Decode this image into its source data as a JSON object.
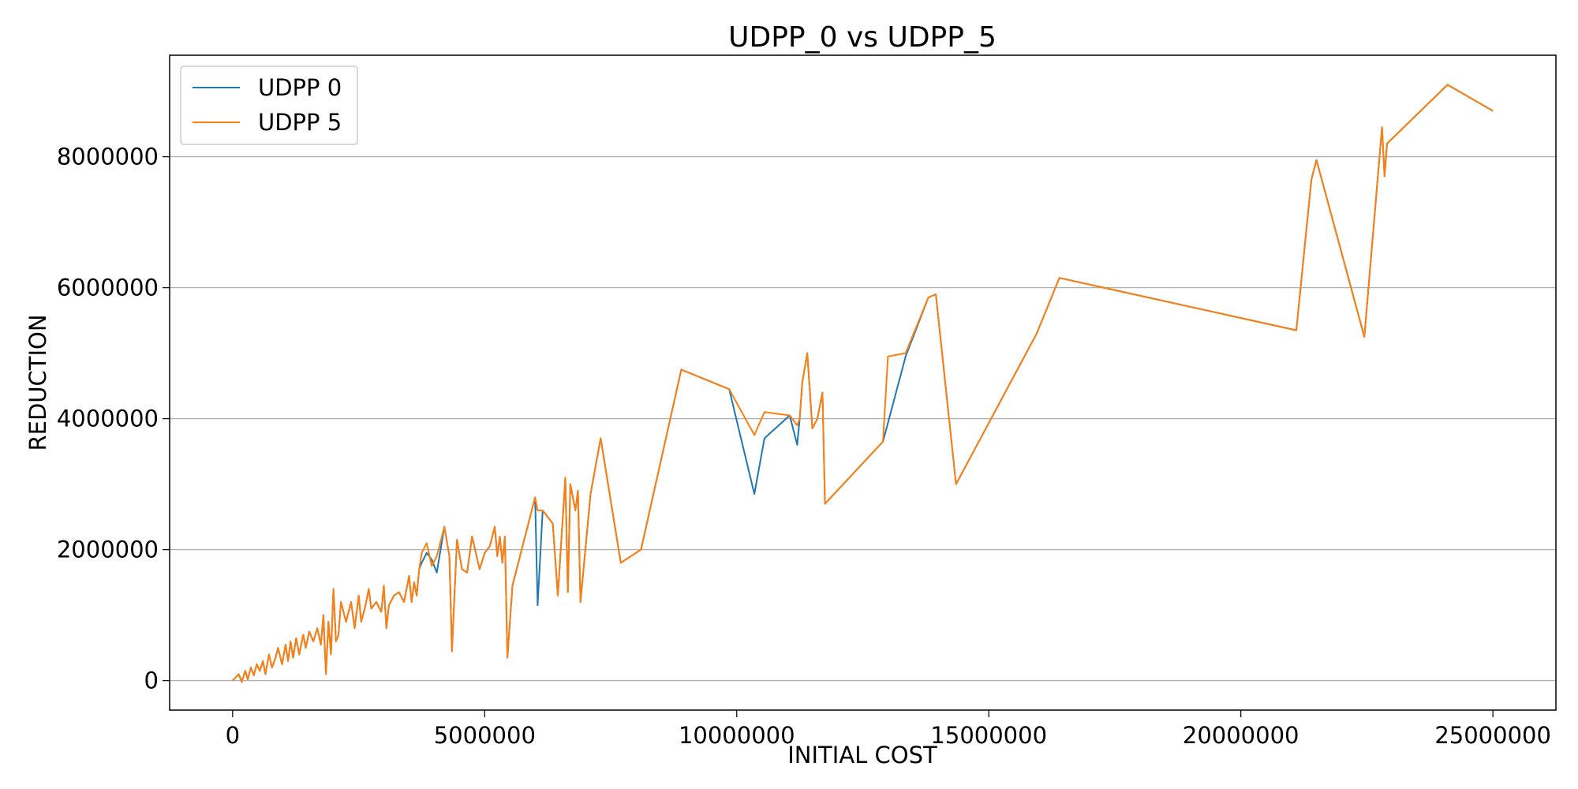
{
  "chart_data": {
    "type": "line",
    "title": "UDPP_0 vs UDPP_5",
    "xlabel": "INITIAL COST",
    "ylabel": "REDUCTION",
    "xlim": [
      -1250000,
      26250000
    ],
    "ylim": [
      -450000,
      9550000
    ],
    "x_ticks": [
      0,
      5000000,
      10000000,
      15000000,
      20000000,
      25000000
    ],
    "x_tick_labels": [
      "0",
      "5000000",
      "10000000",
      "15000000",
      "20000000",
      "25000000"
    ],
    "y_ticks": [
      0,
      2000000,
      4000000,
      6000000,
      8000000
    ],
    "y_tick_labels": [
      "0",
      "2000000",
      "4000000",
      "6000000",
      "8000000"
    ],
    "grid": "horizontal",
    "legend_position": "top-left",
    "series": [
      {
        "name": "UDPP 0",
        "color": "#1f77b4",
        "x": [
          0,
          60000,
          120000,
          180000,
          250000,
          300000,
          360000,
          420000,
          480000,
          540000,
          600000,
          650000,
          720000,
          780000,
          850000,
          900000,
          980000,
          1050000,
          1100000,
          1150000,
          1200000,
          1260000,
          1320000,
          1400000,
          1450000,
          1520000,
          1600000,
          1680000,
          1750000,
          1800000,
          1850000,
          1900000,
          1950000,
          2000000,
          2050000,
          2100000,
          2150000,
          2250000,
          2350000,
          2420000,
          2500000,
          2550000,
          2620000,
          2700000,
          2750000,
          2850000,
          2950000,
          3000000,
          3050000,
          3100000,
          3200000,
          3300000,
          3400000,
          3500000,
          3550000,
          3600000,
          3650000,
          3700000,
          3750000,
          3850000,
          3950000,
          4050000,
          4200000,
          4300000,
          4350000,
          4450000,
          4550000,
          4650000,
          4750000,
          4900000,
          5000000,
          5100000,
          5200000,
          5250000,
          5300000,
          5350000,
          5400000,
          5450000,
          5550000,
          6000000,
          6050000,
          6150000,
          6350000,
          6450000,
          6600000,
          6650000,
          6700000,
          6800000,
          6850000,
          6900000,
          7100000,
          7300000,
          7700000,
          8100000,
          8900000,
          9850000,
          10350000,
          10550000,
          11050000,
          11200000,
          11250000,
          11300000,
          11400000,
          11500000,
          11600000,
          11700000,
          11750000,
          12900000,
          13350000,
          13800000,
          13950000,
          14350000,
          15950000,
          16400000,
          21100000,
          21400000,
          21500000,
          22450000,
          22800000,
          22850000,
          22900000,
          24100000,
          25000000
        ],
        "y": [
          0,
          50000,
          100000,
          -20000,
          150000,
          20000,
          200000,
          80000,
          250000,
          150000,
          300000,
          100000,
          400000,
          200000,
          350000,
          500000,
          250000,
          550000,
          300000,
          600000,
          350000,
          650000,
          400000,
          700000,
          500000,
          750000,
          600000,
          800000,
          550000,
          1000000,
          100000,
          900000,
          400000,
          1400000,
          600000,
          700000,
          1200000,
          900000,
          1200000,
          800000,
          1300000,
          900000,
          1100000,
          1400000,
          1100000,
          1200000,
          1050000,
          1450000,
          800000,
          1150000,
          1300000,
          1350000,
          1200000,
          1600000,
          1200000,
          1500000,
          1300000,
          1700000,
          1800000,
          1950000,
          1850000,
          1650000,
          2350000,
          1900000,
          450000,
          2150000,
          1700000,
          1650000,
          2200000,
          1700000,
          1950000,
          2050000,
          2350000,
          1900000,
          2200000,
          1800000,
          2200000,
          350000,
          1450000,
          2800000,
          1150000,
          2600000,
          2400000,
          1300000,
          3100000,
          1350000,
          3000000,
          2600000,
          2900000,
          1200000,
          2850000,
          3700000,
          1800000,
          2000000,
          4750000,
          4450000,
          2850000,
          3700000,
          4050000,
          3600000,
          4000000,
          4550000,
          5000000,
          3850000,
          4000000,
          4400000,
          2700000,
          3650000,
          4950000,
          5850000,
          5900000,
          3000000,
          5300000,
          6150000,
          5350000,
          7650000,
          7950000,
          5250000,
          8450000,
          7700000,
          8200000,
          9100000,
          8700000
        ]
      },
      {
        "name": "UDPP 5",
        "color": "#ff7f0e",
        "x": [
          0,
          60000,
          120000,
          180000,
          250000,
          300000,
          360000,
          420000,
          480000,
          540000,
          600000,
          650000,
          720000,
          780000,
          850000,
          900000,
          980000,
          1050000,
          1100000,
          1150000,
          1200000,
          1260000,
          1320000,
          1400000,
          1450000,
          1520000,
          1600000,
          1680000,
          1750000,
          1800000,
          1850000,
          1900000,
          1950000,
          2000000,
          2050000,
          2100000,
          2150000,
          2250000,
          2350000,
          2420000,
          2500000,
          2550000,
          2620000,
          2700000,
          2750000,
          2850000,
          2950000,
          3000000,
          3050000,
          3100000,
          3200000,
          3300000,
          3400000,
          3500000,
          3550000,
          3600000,
          3650000,
          3700000,
          3750000,
          3850000,
          3950000,
          4050000,
          4200000,
          4300000,
          4350000,
          4450000,
          4550000,
          4650000,
          4750000,
          4900000,
          5000000,
          5100000,
          5200000,
          5250000,
          5300000,
          5350000,
          5400000,
          5450000,
          5550000,
          6000000,
          6050000,
          6150000,
          6350000,
          6450000,
          6600000,
          6650000,
          6700000,
          6800000,
          6850000,
          6900000,
          7100000,
          7300000,
          7700000,
          8100000,
          8900000,
          9850000,
          10350000,
          10550000,
          11050000,
          11200000,
          11250000,
          11300000,
          11400000,
          11500000,
          11600000,
          11700000,
          11750000,
          12900000,
          13000000,
          13350000,
          13800000,
          13950000,
          14350000,
          15950000,
          16400000,
          21100000,
          21400000,
          21500000,
          22450000,
          22800000,
          22850000,
          22900000,
          24100000,
          25000000
        ],
        "y": [
          0,
          50000,
          100000,
          -20000,
          150000,
          20000,
          200000,
          80000,
          250000,
          150000,
          300000,
          100000,
          400000,
          200000,
          350000,
          500000,
          250000,
          550000,
          300000,
          600000,
          350000,
          650000,
          400000,
          700000,
          500000,
          750000,
          600000,
          800000,
          550000,
          1000000,
          100000,
          900000,
          400000,
          1400000,
          600000,
          700000,
          1200000,
          900000,
          1200000,
          800000,
          1300000,
          900000,
          1100000,
          1400000,
          1100000,
          1200000,
          1050000,
          1450000,
          800000,
          1150000,
          1300000,
          1350000,
          1200000,
          1600000,
          1200000,
          1500000,
          1300000,
          1700000,
          1950000,
          2100000,
          1750000,
          1900000,
          2350000,
          1900000,
          450000,
          2150000,
          1700000,
          1650000,
          2200000,
          1700000,
          1950000,
          2050000,
          2350000,
          1900000,
          2200000,
          1800000,
          2200000,
          350000,
          1450000,
          2800000,
          2600000,
          2600000,
          2400000,
          1300000,
          3100000,
          1350000,
          3000000,
          2600000,
          2900000,
          1200000,
          2850000,
          3700000,
          1800000,
          2000000,
          4750000,
          4450000,
          3750000,
          4100000,
          4050000,
          3900000,
          4000000,
          4550000,
          5000000,
          3850000,
          4000000,
          4400000,
          2700000,
          3650000,
          4950000,
          5000000,
          5850000,
          5900000,
          3000000,
          5300000,
          6150000,
          5350000,
          7650000,
          7950000,
          5250000,
          8450000,
          7700000,
          8200000,
          9100000,
          8700000
        ]
      }
    ]
  }
}
